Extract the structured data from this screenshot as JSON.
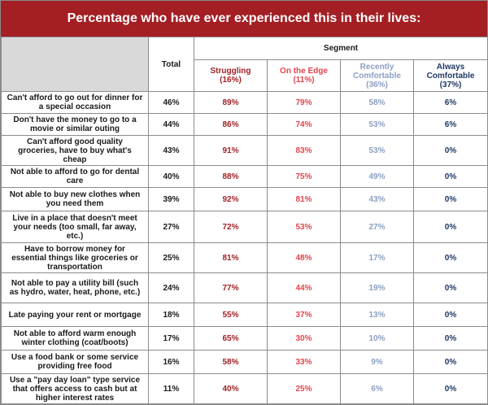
{
  "chart_data": {
    "type": "table",
    "title": "Percentage who have ever experienced this in their lives:",
    "total_header": "Total",
    "segment_header": "Segment",
    "segments": [
      {
        "name": "Struggling",
        "share": "(16%)",
        "color": "#a31f24"
      },
      {
        "name": "On the Edge",
        "share": "(11%)",
        "color": "#e0454c"
      },
      {
        "name": "Recently Comfortable",
        "share": "(36%)",
        "color": "#8c9fc2"
      },
      {
        "name": "Always Comfortable",
        "share": "(37%)",
        "color": "#1f3864"
      }
    ],
    "rows": [
      {
        "label": "Can't afford to go out for dinner for a special occasion",
        "total": "46%",
        "values": [
          "89%",
          "79%",
          "58%",
          "6%"
        ]
      },
      {
        "label": "Don't have the money to go to a movie or similar outing",
        "total": "44%",
        "values": [
          "86%",
          "74%",
          "53%",
          "6%"
        ]
      },
      {
        "label": "Can't afford good quality groceries, have to buy what's cheap",
        "total": "43%",
        "values": [
          "91%",
          "83%",
          "53%",
          "0%"
        ]
      },
      {
        "label": "Not able to afford to go for dental care",
        "total": "40%",
        "values": [
          "88%",
          "75%",
          "49%",
          "0%"
        ]
      },
      {
        "label": "Not able to buy new clothes when you need them",
        "total": "39%",
        "values": [
          "92%",
          "81%",
          "43%",
          "0%"
        ]
      },
      {
        "label": "Live in a place that doesn't meet your needs (too small, far away, etc.)",
        "total": "27%",
        "values": [
          "72%",
          "53%",
          "27%",
          "0%"
        ]
      },
      {
        "label": "Have to borrow money for essential things like groceries or transportation",
        "total": "25%",
        "values": [
          "81%",
          "48%",
          "17%",
          "0%"
        ]
      },
      {
        "label": "Not able to pay a utility bill (such as hydro, water, heat, phone, etc.)",
        "total": "24%",
        "values": [
          "77%",
          "44%",
          "19%",
          "0%"
        ]
      },
      {
        "label": "Late paying your rent or mortgage",
        "total": "18%",
        "values": [
          "55%",
          "37%",
          "13%",
          "0%"
        ]
      },
      {
        "label": "Not able to afford warm enough winter clothing (coat/boots)",
        "total": "17%",
        "values": [
          "65%",
          "30%",
          "10%",
          "0%"
        ]
      },
      {
        "label": "Use a food bank or some service providing free food",
        "total": "16%",
        "values": [
          "58%",
          "33%",
          "9%",
          "0%"
        ]
      },
      {
        "label": "Use a \"pay day loan\" type service that offers access to cash but at higher interest rates",
        "total": "11%",
        "values": [
          "40%",
          "25%",
          "6%",
          "0%"
        ]
      }
    ]
  }
}
